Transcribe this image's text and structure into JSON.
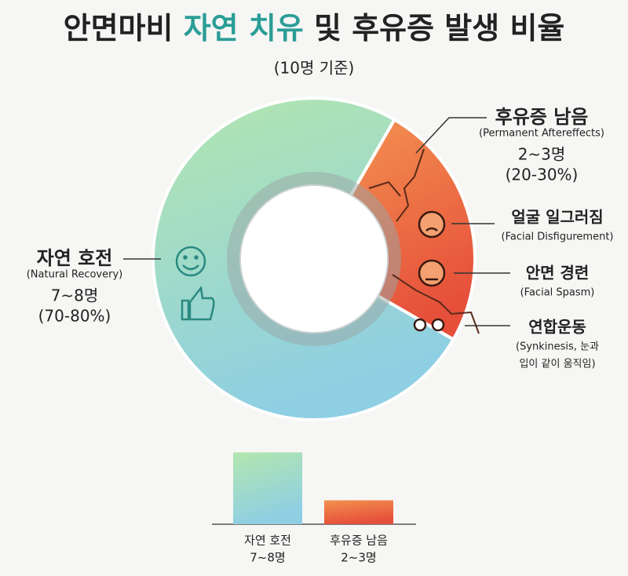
{
  "header": {
    "title_parts": [
      "안면마비",
      "자연 치유",
      "및 후유증 발생 비율"
    ],
    "subtitle": "(10명 기준)"
  },
  "chart_data": [
    {
      "type": "donut",
      "categories": [
        "자연 호전",
        "후유증 남음"
      ],
      "values": [
        75,
        25
      ],
      "colors": [
        [
          "#b3e6ae",
          "#8ecfe3"
        ],
        [
          "#f39150",
          "#e64f3a"
        ]
      ],
      "label_colors": [
        "#2a9d96",
        "#e0502e"
      ],
      "segment_labels": [
        {
          "name": "자연 호전",
          "english": "(Natural Recovery)",
          "count": "7~8명",
          "percent": "(70-80%)"
        },
        {
          "name": "후유증 남음",
          "english": "(Permanent Aftereffects)",
          "count": "2~3명",
          "percent": "(20-30%)"
        }
      ],
      "annotations": [
        {
          "name": "얼굴 일그러짐",
          "lines": [
            "(Facial Disfigurement)"
          ]
        },
        {
          "name": "안면 경련",
          "lines": [
            "(Facial Spasm)"
          ]
        },
        {
          "name": "연합운동",
          "lines": [
            "(Synkinesis, 눈과",
            "입이 같이 움직임)"
          ]
        }
      ]
    },
    {
      "type": "bar",
      "categories": [
        "자연 호전",
        "후유증 남음"
      ],
      "value_texts": [
        "7~8명",
        "2~3명"
      ],
      "values": [
        7.5,
        2.5
      ],
      "colors": [
        [
          "#b3e6ae",
          "#8ecfe3"
        ],
        [
          "#f39150",
          "#e64f3a"
        ]
      ]
    }
  ]
}
